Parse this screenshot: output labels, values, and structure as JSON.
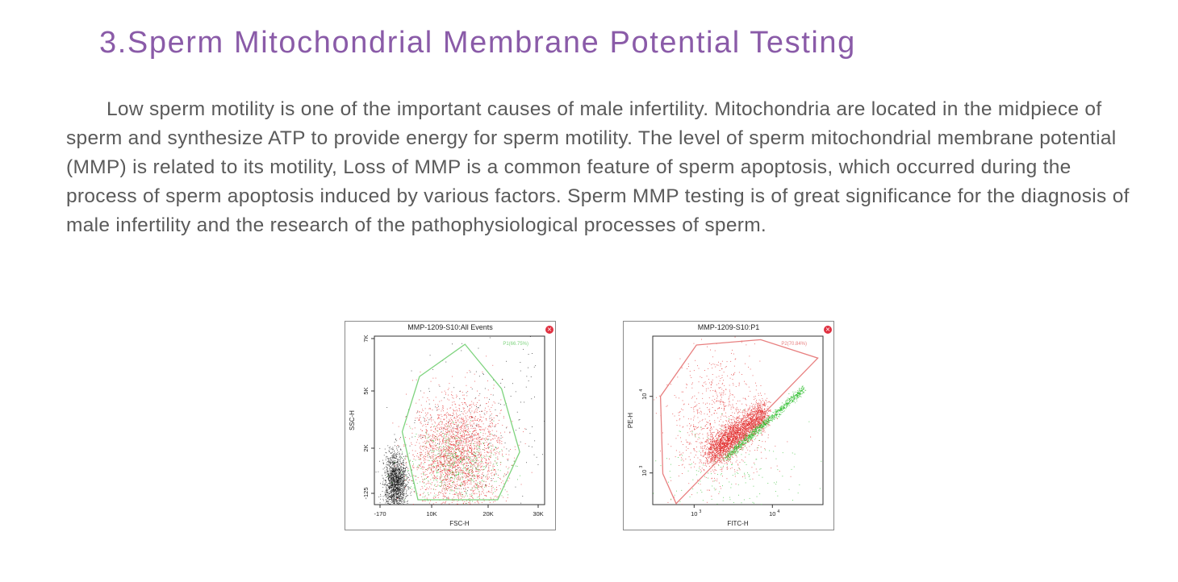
{
  "heading": "3.Sperm Mitochondrial Membrane Potential Testing",
  "paragraph": "Low sperm motility is one of the important causes of male infertility. Mitochondria are located in the midpiece of sperm and synthesize ATP to provide energy for sperm motility.  The level of sperm mitochondrial membrane potential (MMP) is related to its motility, Loss of MMP is a common feature of sperm apoptosis,  which occurred during the process of sperm apoptosis induced by various factors. Sperm MMP testing is of great significance for the diagnosis of male infertility and the research of the pathophysiological processes of sperm.",
  "colors": {
    "heading": "#8a5ba8",
    "text": "#5a5a5a",
    "gate1": "#7dd37d",
    "gate2": "#e88080",
    "red": "#e02020",
    "green": "#22bb22",
    "black": "#111111",
    "close": "#e03040"
  },
  "close_icon": "close-circle-icon",
  "chart_data": [
    {
      "type": "scatter",
      "title": "MMP-1209-S10:All Events",
      "xlabel": "FSC-H",
      "ylabel": "SSC-H",
      "xscale": "linear",
      "xticks": [
        {
          "value": -170,
          "label": "-170"
        },
        {
          "value": 10000,
          "label": "10K"
        },
        {
          "value": 20000,
          "label": "20K"
        },
        {
          "value": 30000,
          "label": "30K"
        }
      ],
      "yticks": [
        {
          "value": -125,
          "label": "-125"
        },
        {
          "value": 2000,
          "label": "2K"
        },
        {
          "value": 5000,
          "label": "5K"
        },
        {
          "value": 7000,
          "label": "7K"
        }
      ],
      "gate": {
        "name": "P1(66.75%)",
        "color": "#7dd37d",
        "vertices": [
          [
            15900,
            6780
          ],
          [
            22700,
            5080
          ],
          [
            26300,
            1820
          ],
          [
            21900,
            -430
          ],
          [
            7300,
            -430
          ],
          [
            4200,
            2860
          ],
          [
            7600,
            5550
          ]
        ]
      },
      "populations": [
        {
          "color": "#111111",
          "center": [
            2800,
            400
          ],
          "spread": [
            1100,
            700
          ],
          "count": 1600
        },
        {
          "color": "#e02020",
          "center": [
            14500,
            1700
          ],
          "spread": [
            4000,
            1400
          ],
          "count": 2600
        },
        {
          "color": "#22bb22",
          "center": [
            14000,
            1200
          ],
          "spread": [
            4200,
            900
          ],
          "count": 500
        },
        {
          "color": "#111111",
          "center": [
            18000,
            3500
          ],
          "spread": [
            9000,
            2200
          ],
          "count": 220
        }
      ]
    },
    {
      "type": "scatter",
      "title": "MMP-1209-S10:P1",
      "xlabel": "FITC-H",
      "ylabel": "PE-H",
      "xscale": "log",
      "xticks": [
        {
          "value": 3,
          "label": "10",
          "exp": "3"
        },
        {
          "value": 4,
          "label": "10",
          "exp": "4"
        }
      ],
      "yticks": [
        {
          "value": 3,
          "label": "10",
          "exp": "3"
        },
        {
          "value": 4,
          "label": "10",
          "exp": "4"
        }
      ],
      "gate": {
        "name": "P2(70.84%)",
        "color": "#e88080",
        "vertices": [
          [
            3.03,
            4.67
          ],
          [
            3.85,
            4.74
          ],
          [
            4.58,
            4.5
          ],
          [
            2.77,
            2.6
          ],
          [
            2.6,
            2.99
          ],
          [
            2.57,
            4.0
          ]
        ]
      },
      "populations": [
        {
          "color": "#e02020",
          "diag": true,
          "start": [
            3.2,
            3.25
          ],
          "end": [
            3.9,
            3.8
          ],
          "spread": 0.09,
          "count": 2600
        },
        {
          "color": "#22bb22",
          "diag": true,
          "start": [
            3.4,
            3.2
          ],
          "end": [
            4.4,
            4.1
          ],
          "spread": 0.025,
          "count": 900
        },
        {
          "color": "#e02020",
          "center": [
            3.3,
            3.5
          ],
          "spread": [
            0.3,
            0.35
          ],
          "count": 700
        },
        {
          "color": "#e02020",
          "center": [
            3.3,
            4.25
          ],
          "spread": [
            0.25,
            0.25
          ],
          "count": 150
        },
        {
          "color": "#22bb22",
          "center": [
            3.5,
            3.0
          ],
          "spread": [
            0.5,
            0.35
          ],
          "count": 180
        }
      ]
    }
  ]
}
